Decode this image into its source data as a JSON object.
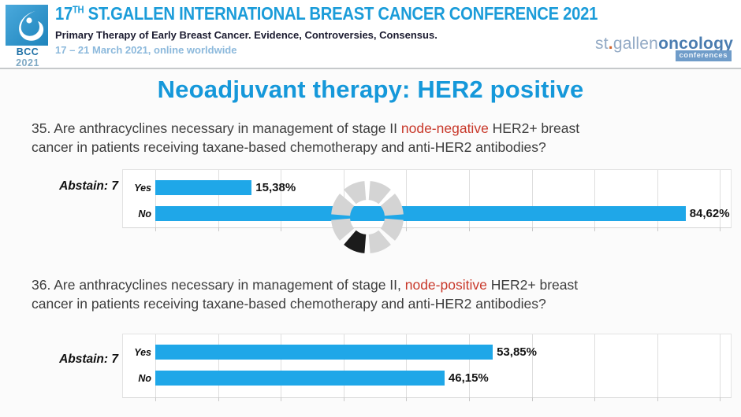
{
  "header": {
    "logo": {
      "abbr": "BCC",
      "year": "2021"
    },
    "title_num": "17",
    "title_sup": "TH",
    "title_rest": " ST.GALLEN INTERNATIONAL BREAST CANCER CONFERENCE 2021",
    "subtitle": "Primary Therapy of Early Breast Cancer. Evidence, Controversies, Consensus.",
    "dates": "17 – 21 March 2021, online worldwide",
    "brand": {
      "part_st": "st",
      "dot": ".",
      "part_gallen": "gallen",
      "part_oncology": "oncology",
      "badge": "conferences"
    }
  },
  "slide": {
    "title": "Neoadjuvant therapy: HER2 positive",
    "questions": [
      {
        "lines": [
          {
            "pre": "35. Are anthracyclines necessary in management of stage II ",
            "red": "node-negative",
            "post": " HER2+ breast"
          },
          {
            "pre": "cancer in patients receiving taxane-based chemotherapy and anti-HER2 antibodies?",
            "red": "",
            "post": ""
          }
        ]
      },
      {
        "lines": [
          {
            "pre": "36. Are anthracyclines necessary in management of stage II, ",
            "red": "node-positive",
            "post": " HER2+ breast"
          },
          {
            "pre": "cancer in patients receiving taxane-based chemotherapy and anti-HER2 antibodies?",
            "red": "",
            "post": ""
          }
        ]
      }
    ]
  },
  "chart_data": [
    {
      "type": "bar",
      "orientation": "horizontal",
      "title": "Question 35 voting result",
      "categories": [
        "Yes",
        "No"
      ],
      "values": [
        15.38,
        84.62
      ],
      "value_labels": [
        "15,38%",
        "84,62%"
      ],
      "abstain_label": "Abstain: 7",
      "abstain_count": 7,
      "xlim": [
        0,
        100
      ],
      "grid": true,
      "bar_color": "#1fa7e8",
      "loading_spinner": true
    },
    {
      "type": "bar",
      "orientation": "horizontal",
      "title": "Question 36 voting result",
      "categories": [
        "Yes",
        "No"
      ],
      "values": [
        53.85,
        46.15
      ],
      "value_labels": [
        "53,85%",
        "46,15%"
      ],
      "abstain_label": "Abstain: 7",
      "abstain_count": 7,
      "xlim": [
        0,
        100
      ],
      "grid": true,
      "bar_color": "#1fa7e8",
      "loading_spinner": false
    }
  ],
  "colors": {
    "accent_blue": "#1598da",
    "header_blue": "#1b9cd9",
    "bar_blue": "#1fa7e8",
    "highlight_red": "#c8382a",
    "brand_light_blue": "#93aac5",
    "brand_dark_blue": "#4a7cb0",
    "date_blue": "#8cb9dc",
    "spinner_segment": "#d4d4d4",
    "spinner_active": "#1b1b1b"
  }
}
